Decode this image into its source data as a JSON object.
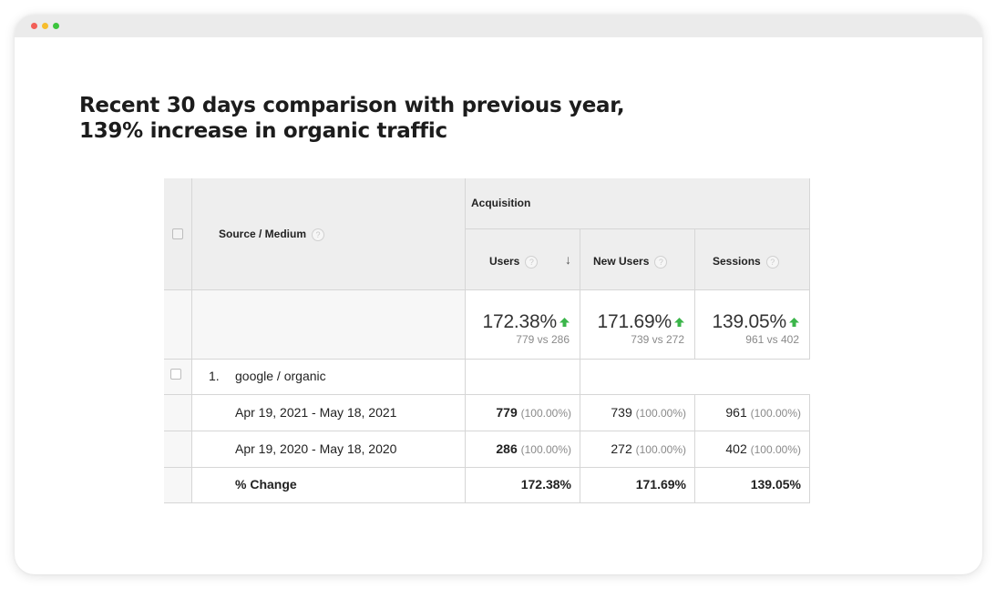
{
  "headline": {
    "line1": "Recent 30 days comparison with previous year,",
    "line2": "139% increase in organic traffic"
  },
  "table": {
    "header": {
      "group_label": "Acquisition",
      "dimension_label": "Source / Medium",
      "help_glyph": "?",
      "sort_glyph": "↓",
      "columns": [
        "Users",
        "New Users",
        "Sessions"
      ]
    },
    "summary": [
      {
        "change": "172.38%",
        "compare": "779 vs 286"
      },
      {
        "change": "171.69%",
        "compare": "739 vs 272"
      },
      {
        "change": "139.05%",
        "compare": "961 vs 402"
      }
    ],
    "row": {
      "index": "1.",
      "name": "google / organic"
    },
    "periods": [
      {
        "label": "Apr 19, 2021 - May 18, 2021",
        "values": [
          {
            "value": "779",
            "pct": "(100.00%)"
          },
          {
            "value": "739",
            "pct": "(100.00%)"
          },
          {
            "value": "961",
            "pct": "(100.00%)"
          }
        ]
      },
      {
        "label": "Apr 19, 2020 - May 18, 2020",
        "values": [
          {
            "value": "286",
            "pct": "(100.00%)"
          },
          {
            "value": "272",
            "pct": "(100.00%)"
          },
          {
            "value": "402",
            "pct": "(100.00%)"
          }
        ]
      }
    ],
    "change_row": {
      "label": "% Change",
      "values": [
        "172.38%",
        "171.69%",
        "139.05%"
      ]
    }
  },
  "colors": {
    "up_arrow": "#3bb54a",
    "header_bg": "#eeeeee",
    "grid": "#d6d6d6"
  }
}
